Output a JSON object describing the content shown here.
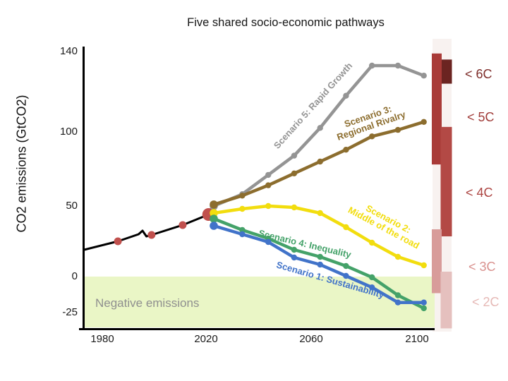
{
  "title": "Five shared socio-economic pathways",
  "y_axis_label": "CO2 emissions (GtCO2)",
  "negative_emissions_label": "Negative emissions",
  "chart_data": {
    "type": "line",
    "title": "Five shared socio-economic pathways",
    "xlabel": "",
    "ylabel": "CO2 emissions (GtCO2)",
    "grid": false,
    "x_range": [
      1972,
      2107
    ],
    "y_range": [
      -35,
      145
    ],
    "y_ticks": [
      140,
      100,
      50,
      0,
      -25
    ],
    "x_ticks": [
      1980,
      2020,
      2060,
      2100
    ],
    "y_tick_labels": [
      "140",
      "100",
      "50",
      "0",
      "-25"
    ],
    "x_tick_labels": [
      "1980",
      "2020",
      "2060",
      "2100"
    ],
    "historical": {
      "name": "Historical emissions",
      "color": "#000000",
      "points": [
        [
          1973,
          19
        ],
        [
          1986,
          25
        ],
        [
          1994,
          30
        ],
        [
          1995.5,
          32.5
        ],
        [
          1997,
          28.5
        ],
        [
          1999,
          29.5
        ],
        [
          2011,
          36.5
        ],
        [
          2021,
          44
        ]
      ]
    },
    "historical_markers": {
      "color": "#C0504D",
      "points": [
        [
          1986,
          25
        ],
        [
          1999,
          29.5
        ],
        [
          2011,
          36.5
        ]
      ],
      "major_point": [
        2021,
        44
      ]
    },
    "x": [
      2023,
      2034,
      2044,
      2054,
      2064,
      2074,
      2084,
      2094,
      2104
    ],
    "series": [
      {
        "id": "s5",
        "name": "Scenario 5: Rapid Growth",
        "color": "#949494",
        "values": [
          50,
          58,
          71,
          84,
          102,
          118,
          133,
          133,
          128
        ]
      },
      {
        "id": "s3",
        "name": "Scenario 3: Regional Rivalry",
        "label_line1": "Scenario 3:",
        "label_line2": "Regional Rivalry",
        "color": "#8C6D2E",
        "values": [
          51,
          57,
          64,
          72,
          80,
          88,
          97,
          101,
          105
        ]
      },
      {
        "id": "s2",
        "name": "Scenario 2: Middle of the road",
        "label_line1": "Scenario 2:",
        "label_line2": "Middle of the road",
        "color": "#F2DD0E",
        "values": [
          45,
          48,
          50,
          49,
          45,
          35,
          24,
          14,
          8
        ]
      },
      {
        "id": "s4",
        "name": "Scenario 4: Inequality",
        "color": "#44A269",
        "values": [
          41,
          33,
          27,
          19,
          14,
          7.5,
          -0.5,
          -13,
          -22
        ]
      },
      {
        "id": "s1",
        "name": "Scenario 1: Sustainability",
        "color": "#4173C9",
        "values": [
          36,
          30,
          24.5,
          13.5,
          8.5,
          0.5,
          -7.5,
          -18,
          -18
        ]
      }
    ],
    "negative_emissions_band": {
      "label": "Negative emissions",
      "below_value": 0,
      "color": "#EAF6C6"
    },
    "temperature_scale": [
      {
        "id": "6c",
        "label": "< 6C",
        "bar_color": "#6B2421",
        "label_color": "#7E2D2A",
        "value_range": [
          124,
          136
        ],
        "column": 1
      },
      {
        "id": "5c",
        "label": "< 5C",
        "bar_color": "#A93B38",
        "label_color": "#A03C39",
        "value_range": [
          78,
          139
        ],
        "column": 0
      },
      {
        "id": "4c",
        "label": "< 4C",
        "bar_color": "#B34945",
        "label_color": "#AC4441",
        "value_range": [
          28.5,
          102.5
        ],
        "column": 1
      },
      {
        "id": "3c",
        "label": "< 3C",
        "bar_color": "#D89C9A",
        "label_color": "#D9918E",
        "value_range": [
          -11.5,
          33.5
        ],
        "column": 0
      },
      {
        "id": "2c",
        "label": "< 2C",
        "bar_color": "#E5C0BE",
        "label_color": "#E6B9B6",
        "value_range": [
          -36,
          3.5
        ],
        "column": 1
      }
    ]
  }
}
